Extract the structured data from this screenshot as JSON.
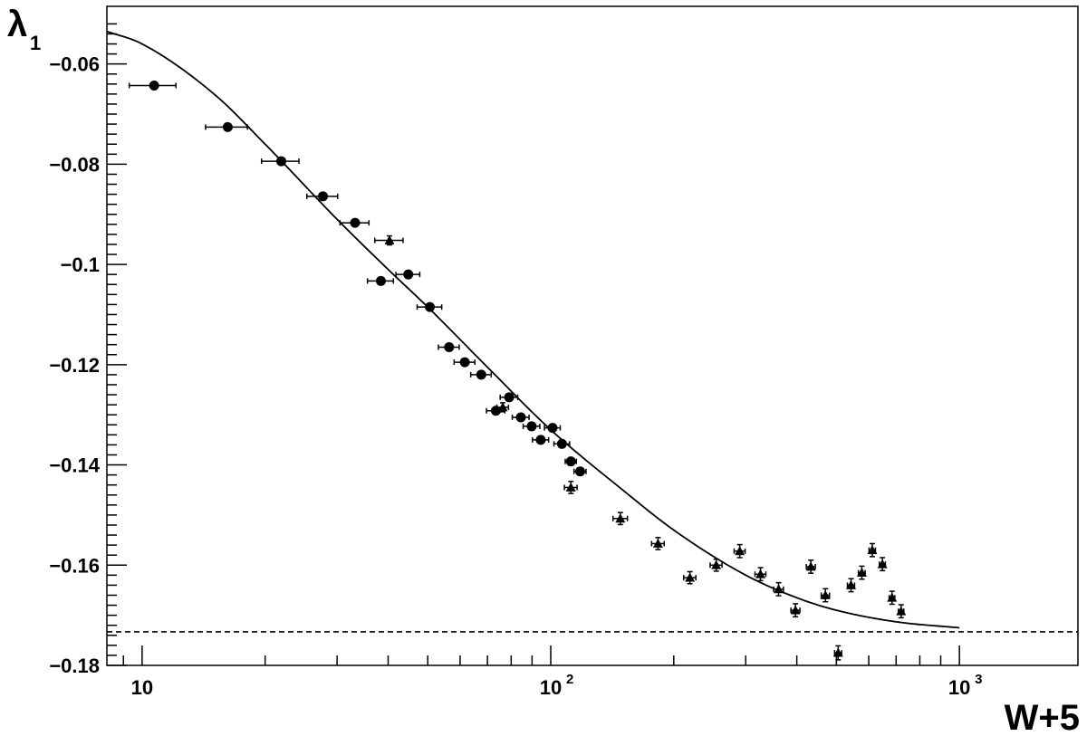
{
  "chart_data": {
    "type": "scatter",
    "title": "",
    "xlabel": "W+5",
    "ylabel": "λ",
    "ylabel_subscript": "1",
    "x_scale": "log",
    "xlim": [
      8.2,
      1950
    ],
    "ylim": [
      -0.18,
      -0.0485
    ],
    "x_ticks": [
      {
        "value": 10,
        "label": "10",
        "exp": ""
      },
      {
        "value": 100,
        "label": "10",
        "exp": "2"
      },
      {
        "value": 1000,
        "label": "10",
        "exp": "3"
      }
    ],
    "y_ticks": [
      -0.06,
      -0.08,
      -0.1,
      -0.12,
      -0.14,
      -0.16,
      -0.18
    ],
    "y_tick_labels": [
      "−0.06",
      "−0.08",
      "−0.1",
      "−0.12",
      "−0.14",
      "−0.16",
      "−0.18"
    ],
    "grid": false,
    "series": [
      {
        "marker": "circle",
        "points": [
          {
            "x": 10.7,
            "y": -0.0643,
            "xerr": [
              1.4,
              1.4
            ],
            "yerr": 0.0003
          },
          {
            "x": 16.2,
            "y": -0.0726,
            "xerr": [
              1.9,
              1.9
            ],
            "yerr": 0.0003
          },
          {
            "x": 21.9,
            "y": -0.0794,
            "xerr": [
              2.3,
              2.3
            ],
            "yerr": 0.0003
          },
          {
            "x": 27.7,
            "y": -0.0864,
            "xerr": [
              2.4,
              2.4
            ],
            "yerr": 0.0004
          },
          {
            "x": 33.2,
            "y": -0.0917,
            "xerr": [
              2.7,
              2.7
            ],
            "yerr": 0.0004
          },
          {
            "x": 38.4,
            "y": -0.1033,
            "xerr": [
              2.8,
              2.8
            ],
            "yerr": 0.0004
          },
          {
            "x": 44.8,
            "y": -0.102,
            "xerr": [
              3.0,
              3.0
            ],
            "yerr": 0.0004
          },
          {
            "x": 50.6,
            "y": -0.1085,
            "xerr": [
              3.5,
              3.5
            ],
            "yerr": 0.0004
          },
          {
            "x": 56.4,
            "y": -0.1165,
            "xerr": [
              3.3,
              3.3
            ],
            "yerr": 0.0004
          },
          {
            "x": 61.6,
            "y": -0.1195,
            "xerr": [
              3.6,
              3.6
            ],
            "yerr": 0.0004
          },
          {
            "x": 67.6,
            "y": -0.122,
            "xerr": [
              3.9,
              3.9
            ],
            "yerr": 0.0004
          },
          {
            "x": 73.4,
            "y": -0.1292,
            "xerr": [
              3.8,
              3.8
            ],
            "yerr": 0.0004
          },
          {
            "x": 79.1,
            "y": -0.1265,
            "xerr": [
              3.9,
              3.9
            ],
            "yerr": 0.0004
          },
          {
            "x": 84.5,
            "y": -0.1305,
            "xerr": [
              4.0,
              4.0
            ],
            "yerr": 0.0004
          },
          {
            "x": 89.8,
            "y": -0.1323,
            "xerr": [
              4.2,
              4.2
            ],
            "yerr": 0.0004
          },
          {
            "x": 94.5,
            "y": -0.135,
            "xerr": [
              4.3,
              4.3
            ],
            "yerr": 0.0004
          },
          {
            "x": 101.0,
            "y": -0.1326,
            "xerr": [
              4.5,
              4.5
            ],
            "yerr": 0.0004
          },
          {
            "x": 106.5,
            "y": -0.1358,
            "xerr": [
              4.7,
              4.7
            ],
            "yerr": 0.0004
          },
          {
            "x": 112.0,
            "y": -0.1393,
            "xerr": [
              3.5,
              3.5
            ],
            "yerr": 0.0005
          },
          {
            "x": 118.0,
            "y": -0.1413,
            "xerr": [
              4.0,
              4.0
            ],
            "yerr": 0.0005
          }
        ]
      },
      {
        "marker": "triangle",
        "points": [
          {
            "x": 40.3,
            "y": -0.0952,
            "xerr": [
              3.2,
              3.2
            ],
            "yerr": 0.0009
          },
          {
            "x": 76.3,
            "y": -0.1285,
            "xerr": [
              2.5,
              2.5
            ],
            "yerr": 0.0009
          },
          {
            "x": 112.0,
            "y": -0.1445,
            "xerr": [
              4.0,
              4.0
            ],
            "yerr": 0.0012
          },
          {
            "x": 148.0,
            "y": -0.1507,
            "xerr": [
              6.0,
              6.0
            ],
            "yerr": 0.0012
          },
          {
            "x": 183.0,
            "y": -0.1557,
            "xerr": [
              6.5,
              6.5
            ],
            "yerr": 0.0012
          },
          {
            "x": 219.0,
            "y": -0.1625,
            "xerr": [
              7.5,
              7.5
            ],
            "yerr": 0.0012
          },
          {
            "x": 254.0,
            "y": -0.16,
            "xerr": [
              8.5,
              8.5
            ],
            "yerr": 0.0012
          },
          {
            "x": 290.0,
            "y": -0.1572,
            "xerr": [
              9.0,
              9.0
            ],
            "yerr": 0.0013
          },
          {
            "x": 326.0,
            "y": -0.1618,
            "xerr": [
              10.0,
              10.0
            ],
            "yerr": 0.0013
          },
          {
            "x": 361.0,
            "y": -0.1648,
            "xerr": [
              10.0,
              10.0
            ],
            "yerr": 0.0013
          },
          {
            "x": 397.0,
            "y": -0.169,
            "xerr": [
              10.0,
              10.0
            ],
            "yerr": 0.0013
          },
          {
            "x": 433.0,
            "y": -0.1603,
            "xerr": [
              11.0,
              11.0
            ],
            "yerr": 0.0013
          },
          {
            "x": 470.0,
            "y": -0.166,
            "xerr": [
              11.0,
              11.0
            ],
            "yerr": 0.0013
          },
          {
            "x": 505.0,
            "y": -0.1775,
            "xerr": [
              10.0,
              10.0
            ],
            "yerr": 0.0014
          },
          {
            "x": 543.0,
            "y": -0.164,
            "xerr": [
              11.0,
              11.0
            ],
            "yerr": 0.0013
          },
          {
            "x": 577.0,
            "y": -0.1615,
            "xerr": [
              11.0,
              11.0
            ],
            "yerr": 0.0013
          },
          {
            "x": 612.0,
            "y": -0.157,
            "xerr": [
              11.0,
              11.0
            ],
            "yerr": 0.0013
          },
          {
            "x": 648.0,
            "y": -0.1598,
            "xerr": [
              11.0,
              11.0
            ],
            "yerr": 0.0013
          },
          {
            "x": 684.0,
            "y": -0.1665,
            "xerr": [
              11.0,
              11.0
            ],
            "yerr": 0.0013
          },
          {
            "x": 720.0,
            "y": -0.1692,
            "xerr": [
              11.0,
              11.0
            ],
            "yerr": 0.0013
          }
        ]
      }
    ],
    "fit_curve": {
      "style": "solid",
      "points": [
        [
          8.2,
          -0.0535
        ],
        [
          10,
          -0.056
        ],
        [
          15,
          -0.066
        ],
        [
          20,
          -0.076
        ],
        [
          30,
          -0.091
        ],
        [
          40,
          -0.101
        ],
        [
          50,
          -0.1085
        ],
        [
          70,
          -0.1205
        ],
        [
          100,
          -0.133
        ],
        [
          150,
          -0.145
        ],
        [
          200,
          -0.153
        ],
        [
          300,
          -0.162
        ],
        [
          400,
          -0.1665
        ],
        [
          500,
          -0.169
        ],
        [
          700,
          -0.1713
        ],
        [
          1000,
          -0.1725
        ]
      ]
    },
    "reference_line": {
      "y": -0.1733,
      "style": "dashed"
    }
  }
}
